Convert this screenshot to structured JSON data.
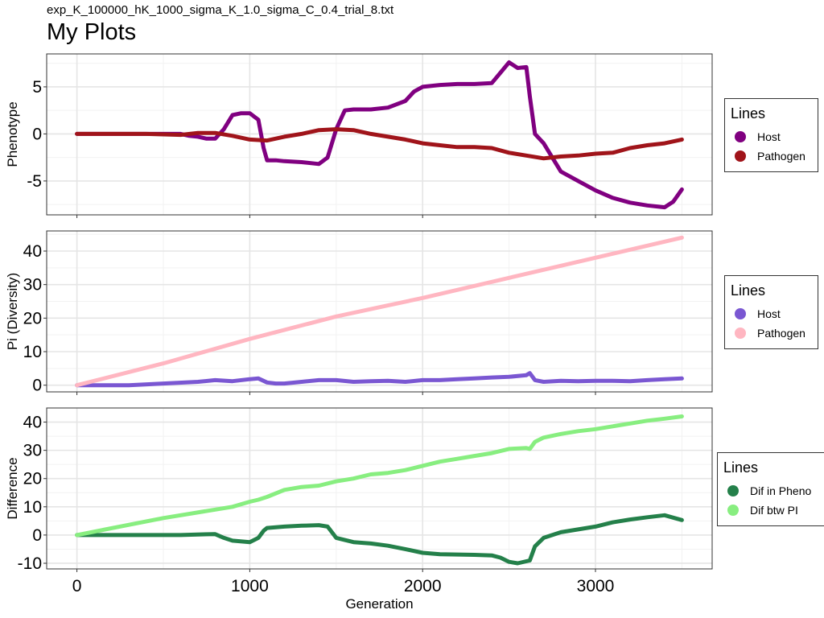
{
  "header": {
    "subtitle": "exp_K_100000_hK_1000_sigma_K_1.0_sigma_C_0.4_trial_8.txt",
    "title": "My Plots"
  },
  "chart_data": [
    {
      "type": "line",
      "ylabel": "Phenotype",
      "xlabel": "",
      "xlim": [
        -175,
        3675
      ],
      "ylim": [
        -8.6,
        8.5
      ],
      "yticks": [
        5,
        0,
        -5
      ],
      "ytick_labels": [
        "5",
        "0",
        "-5"
      ],
      "xticks": [
        0,
        1000,
        2000,
        3000
      ],
      "grid": true,
      "legend": {
        "title": "Lines",
        "position": "right"
      },
      "series": [
        {
          "name": "Host",
          "color": "#800080",
          "x": [
            0,
            300,
            600,
            650,
            700,
            750,
            800,
            850,
            900,
            950,
            1000,
            1050,
            1080,
            1100,
            1150,
            1200,
            1300,
            1400,
            1450,
            1500,
            1550,
            1600,
            1700,
            1800,
            1900,
            1950,
            2000,
            2100,
            2200,
            2300,
            2400,
            2450,
            2500,
            2550,
            2600,
            2620,
            2650,
            2700,
            2750,
            2800,
            2900,
            3000,
            3100,
            3200,
            3300,
            3400,
            3450,
            3500
          ],
          "y": [
            0,
            0,
            0,
            -0.2,
            -0.3,
            -0.5,
            -0.5,
            0.5,
            2,
            2.2,
            2.2,
            1.5,
            -1.5,
            -2.8,
            -2.8,
            -2.9,
            -3,
            -3.2,
            -2.5,
            0.5,
            2.5,
            2.6,
            2.6,
            2.8,
            3.5,
            4.5,
            5,
            5.2,
            5.3,
            5.3,
            5.4,
            6.5,
            7.6,
            7,
            7.1,
            4,
            0,
            -1,
            -2.5,
            -4,
            -5,
            -6,
            -6.8,
            -7.3,
            -7.6,
            -7.8,
            -7.2,
            -5.9
          ]
        },
        {
          "name": "Pathogen",
          "color": "#a0141a",
          "x": [
            0,
            200,
            400,
            600,
            700,
            800,
            900,
            1000,
            1100,
            1200,
            1300,
            1400,
            1500,
            1600,
            1700,
            1800,
            1900,
            2000,
            2100,
            2200,
            2300,
            2400,
            2500,
            2600,
            2700,
            2800,
            2900,
            3000,
            3100,
            3200,
            3300,
            3400,
            3500
          ],
          "y": [
            0,
            0,
            0,
            -0.1,
            0.1,
            0.1,
            -0.2,
            -0.6,
            -0.7,
            -0.3,
            0,
            0.4,
            0.5,
            0.4,
            0,
            -0.3,
            -0.6,
            -1,
            -1.2,
            -1.4,
            -1.4,
            -1.5,
            -2,
            -2.3,
            -2.6,
            -2.4,
            -2.3,
            -2.1,
            -2,
            -1.5,
            -1.2,
            -1,
            -0.6
          ]
        }
      ]
    },
    {
      "type": "line",
      "ylabel": "Pi (Diversity)",
      "xlabel": "",
      "xlim": [
        -175,
        3675
      ],
      "ylim": [
        -2,
        46
      ],
      "yticks": [
        40,
        30,
        20,
        10,
        0
      ],
      "ytick_labels": [
        "40",
        "30",
        "20",
        "10",
        "0"
      ],
      "xticks": [
        0,
        1000,
        2000,
        3000
      ],
      "grid": true,
      "legend": {
        "title": "Lines",
        "position": "right"
      },
      "series": [
        {
          "name": "Host",
          "color": "#7a57d2",
          "x": [
            0,
            300,
            500,
            700,
            800,
            900,
            1000,
            1050,
            1100,
            1150,
            1200,
            1300,
            1400,
            1500,
            1600,
            1700,
            1800,
            1900,
            2000,
            2100,
            2200,
            2300,
            2400,
            2500,
            2600,
            2620,
            2650,
            2700,
            2800,
            2900,
            3000,
            3100,
            3200,
            3300,
            3400,
            3500
          ],
          "y": [
            0,
            0,
            0.5,
            1,
            1.5,
            1.2,
            1.8,
            2,
            0.8,
            0.5,
            0.5,
            1,
            1.5,
            1.5,
            1,
            1.2,
            1.3,
            1,
            1.5,
            1.5,
            1.8,
            2,
            2.3,
            2.5,
            3,
            3.6,
            1.5,
            1,
            1.3,
            1.2,
            1.3,
            1.3,
            1.2,
            1.5,
            1.8,
            2
          ]
        },
        {
          "name": "Pathogen",
          "color": "#ffb6c1",
          "x": [
            0,
            500,
            1000,
            1500,
            2000,
            2500,
            3000,
            3500
          ],
          "y": [
            0,
            6.5,
            13.8,
            20.5,
            26,
            32,
            38,
            44
          ]
        }
      ]
    },
    {
      "type": "line",
      "ylabel": "Difference",
      "xlabel": "Generation",
      "xlim": [
        -175,
        3675
      ],
      "ylim": [
        -12,
        45
      ],
      "yticks": [
        40,
        30,
        20,
        10,
        0,
        -10
      ],
      "ytick_labels": [
        "40",
        "30",
        "20",
        "10",
        "0",
        "-10"
      ],
      "xticks": [
        0,
        1000,
        2000,
        3000
      ],
      "xtick_labels": [
        "0",
        "1000",
        "2000",
        "3000"
      ],
      "grid": true,
      "legend": {
        "title": "Lines",
        "position": "right"
      },
      "series": [
        {
          "name": "Dif in Pheno",
          "color": "#24804a",
          "x": [
            0,
            300,
            600,
            700,
            800,
            850,
            900,
            1000,
            1050,
            1080,
            1100,
            1200,
            1300,
            1400,
            1450,
            1500,
            1600,
            1700,
            1800,
            1900,
            2000,
            2100,
            2200,
            2300,
            2400,
            2450,
            2500,
            2550,
            2600,
            2620,
            2650,
            2700,
            2800,
            2900,
            3000,
            3100,
            3200,
            3300,
            3400,
            3500
          ],
          "y": [
            0,
            0,
            0,
            0.2,
            0.3,
            -1,
            -2,
            -2.5,
            -1,
            1.5,
            2.5,
            3,
            3.3,
            3.5,
            3,
            -1,
            -2.5,
            -3,
            -3.8,
            -5,
            -6.3,
            -6.8,
            -6.9,
            -7,
            -7.2,
            -8,
            -9.5,
            -10,
            -9.3,
            -9,
            -4,
            -1,
            1,
            2,
            3,
            4.5,
            5.5,
            6.3,
            7,
            5.3
          ]
        },
        {
          "name": "Dif btw PI",
          "color": "#88ee80",
          "x": [
            0,
            500,
            800,
            900,
            1000,
            1050,
            1100,
            1200,
            1300,
            1400,
            1500,
            1600,
            1700,
            1800,
            1900,
            2000,
            2100,
            2200,
            2300,
            2400,
            2500,
            2600,
            2620,
            2650,
            2700,
            2800,
            2900,
            3000,
            3100,
            3200,
            3300,
            3400,
            3500
          ],
          "y": [
            0,
            6,
            9,
            10,
            11.8,
            12.5,
            13.5,
            16,
            17,
            17.5,
            19,
            20,
            21.5,
            22,
            23,
            24.5,
            26,
            27,
            28,
            29,
            30.5,
            30.8,
            30.5,
            33,
            34.5,
            35.8,
            36.8,
            37.5,
            38.5,
            39.5,
            40.5,
            41.2,
            42
          ]
        }
      ]
    }
  ]
}
